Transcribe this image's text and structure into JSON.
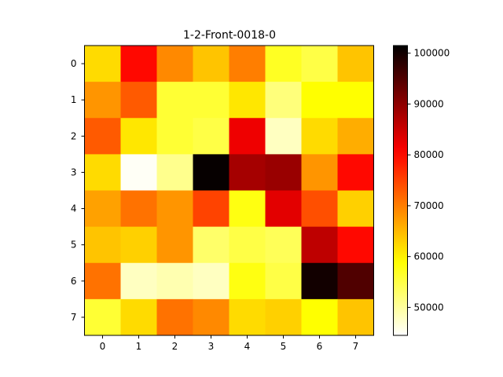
{
  "chart_data": {
    "type": "heatmap",
    "title": "1-2-Front-0018-0",
    "xlabel": "",
    "ylabel": "",
    "x_ticks": [
      "0",
      "1",
      "2",
      "3",
      "4",
      "5",
      "6",
      "7"
    ],
    "y_ticks": [
      "0",
      "1",
      "2",
      "3",
      "4",
      "5",
      "6",
      "7"
    ],
    "colormap": "hot_r",
    "vmin": 44500,
    "vmax": 101500,
    "colorbar_ticks": [
      50000,
      60000,
      70000,
      80000,
      90000,
      100000
    ],
    "colorbar_tick_labels": [
      "50000",
      "60000",
      "70000",
      "80000",
      "90000",
      "100000"
    ],
    "values": [
      [
        62000,
        80000,
        69000,
        64000,
        70000,
        57000,
        55000,
        64000
      ],
      [
        68000,
        73000,
        56000,
        56000,
        61000,
        52000,
        59000,
        59000
      ],
      [
        73000,
        61000,
        56000,
        55000,
        82000,
        48000,
        62000,
        66000
      ],
      [
        62000,
        45000,
        51000,
        101000,
        88000,
        89000,
        68000,
        80000
      ],
      [
        67000,
        71000,
        68000,
        75000,
        58000,
        83000,
        74000,
        63000
      ],
      [
        64000,
        63000,
        68000,
        53000,
        55000,
        54000,
        86000,
        80000
      ],
      [
        71000,
        48000,
        49000,
        48000,
        58000,
        55000,
        100000,
        95000
      ],
      [
        56000,
        62000,
        71000,
        69000,
        62000,
        63000,
        59000,
        64000
      ]
    ],
    "grid": false
  }
}
